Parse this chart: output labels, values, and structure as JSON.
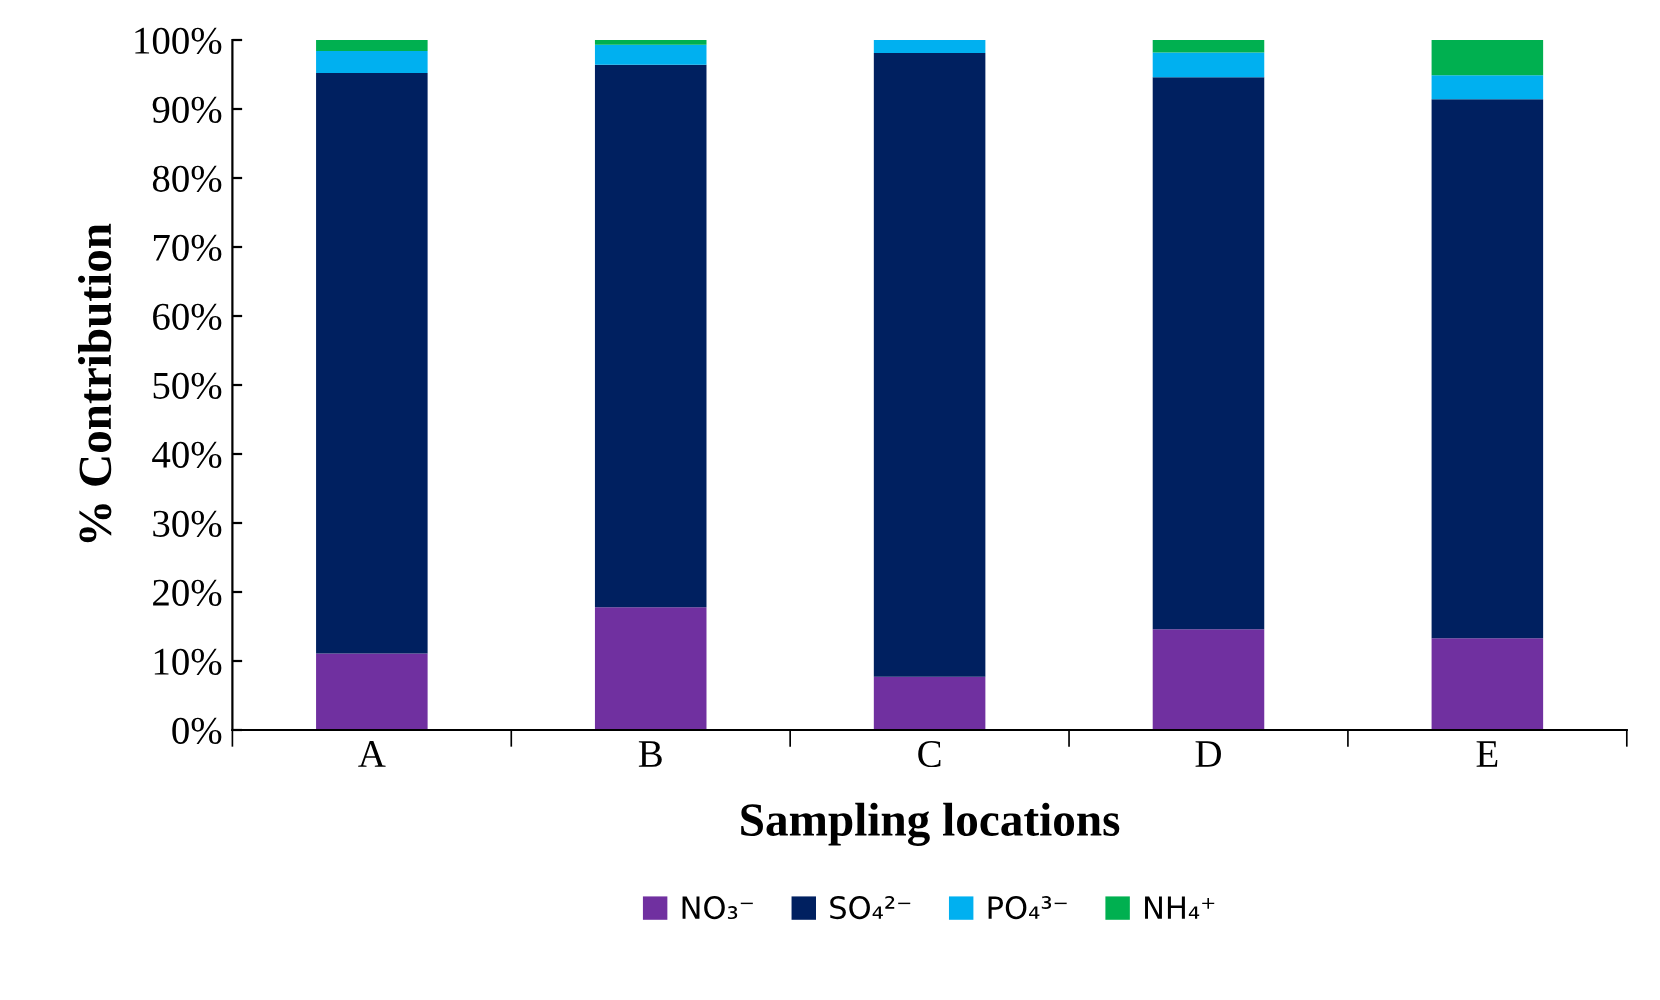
{
  "chart_data": {
    "type": "bar",
    "stacked": true,
    "xlabel": "Sampling locations",
    "ylabel": "% Contribution",
    "categories": [
      "A",
      "B",
      "C",
      "D",
      "E"
    ],
    "series": [
      {
        "name": "NO₃⁻",
        "color": "#7030a0",
        "values": [
          11.1,
          17.8,
          7.7,
          14.6,
          13.3
        ]
      },
      {
        "name": "SO₄²⁻",
        "color": "#002060",
        "values": [
          84.1,
          78.6,
          90.4,
          80.0,
          78.1
        ]
      },
      {
        "name": "PO₄³⁻",
        "color": "#00b0f0",
        "values": [
          3.2,
          2.9,
          1.9,
          3.6,
          3.5
        ]
      },
      {
        "name": "NH₄⁺",
        "color": "#00b050",
        "values": [
          1.6,
          0.7,
          0,
          1.8,
          5.1
        ]
      }
    ],
    "ylim": [
      0,
      100
    ],
    "yticks": [
      {
        "value": 0,
        "label": "0%"
      },
      {
        "value": 10,
        "label": "10%"
      },
      {
        "value": 20,
        "label": "20%"
      },
      {
        "value": 30,
        "label": "30%"
      },
      {
        "value": 40,
        "label": "40%"
      },
      {
        "value": 50,
        "label": "50%"
      },
      {
        "value": 60,
        "label": "60%"
      },
      {
        "value": 70,
        "label": "70%"
      },
      {
        "value": 80,
        "label": "80%"
      },
      {
        "value": 90,
        "label": "90%"
      },
      {
        "value": 100,
        "label": "100%"
      }
    ],
    "grid": false,
    "legend": "bottom"
  }
}
